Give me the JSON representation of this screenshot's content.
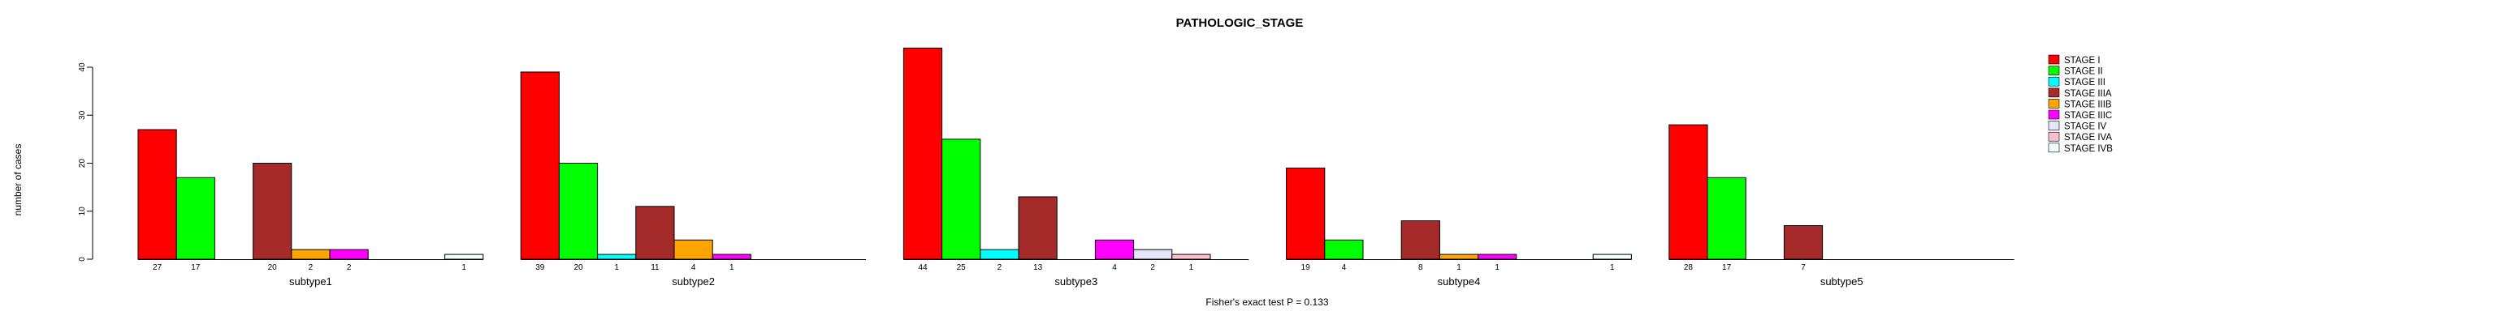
{
  "title": "PATHOLOGIC_STAGE",
  "ylabel": "number of cases",
  "footer": "Fisher's exact test P = 0.133",
  "chart_data": {
    "type": "bar",
    "grouped": true,
    "title": "PATHOLOGIC_STAGE",
    "xlabel": "",
    "ylabel": "number of cases",
    "categories": [
      "subtype1",
      "subtype2",
      "subtype3",
      "subtype4",
      "subtype5"
    ],
    "series": [
      {
        "name": "STAGE I",
        "color": "#FF0000",
        "values": [
          27,
          39,
          44,
          19,
          28
        ]
      },
      {
        "name": "STAGE II",
        "color": "#00FF00",
        "values": [
          17,
          20,
          25,
          4,
          17
        ]
      },
      {
        "name": "STAGE III",
        "color": "#00FFFF",
        "values": [
          0,
          1,
          2,
          0,
          0
        ]
      },
      {
        "name": "STAGE IIIA",
        "color": "#A52A2A",
        "values": [
          20,
          11,
          13,
          8,
          7
        ]
      },
      {
        "name": "STAGE IIIB",
        "color": "#FFA500",
        "values": [
          2,
          4,
          0,
          1,
          0
        ]
      },
      {
        "name": "STAGE IIIC",
        "color": "#FF00FF",
        "values": [
          2,
          1,
          4,
          1,
          0
        ]
      },
      {
        "name": "STAGE IV",
        "color": "#E6E6FA",
        "values": [
          0,
          0,
          2,
          0,
          0
        ]
      },
      {
        "name": "STAGE IVA",
        "color": "#FFC0CB",
        "values": [
          0,
          0,
          1,
          0,
          0
        ]
      },
      {
        "name": "STAGE IVB",
        "color": "#F0FFFF",
        "values": [
          1,
          0,
          0,
          1,
          0
        ]
      }
    ],
    "yticks": [
      0,
      10,
      20,
      30,
      40
    ],
    "ylim": [
      0,
      44
    ],
    "bar_value_labels_shown": true,
    "legend_position": "right",
    "grid": false,
    "annotations": [
      "Fisher's exact test P = 0.133"
    ]
  }
}
